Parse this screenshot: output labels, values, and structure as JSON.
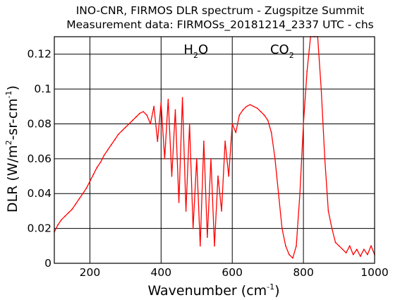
{
  "chart_data": {
    "type": "line",
    "title": "INO-CNR, FIRMOS DLR spectrum - Zugspitze Summit",
    "subtitle": "Measurement data: FIRMOSs_20181214_2337 UTC - chs",
    "xlabel": {
      "main": "Wavenumber (cm",
      "sup": "-1",
      "end": ")"
    },
    "ylabel": {
      "p1": "DLR (W/m",
      "sup1": "2",
      "p2": "-sr-cm",
      "sup2": "-1",
      "p3": ")"
    },
    "xlim": [
      100,
      1000
    ],
    "ylim": [
      0,
      0.13
    ],
    "xticks": [
      200,
      400,
      600,
      800,
      1000
    ],
    "xtick_labels": [
      "200",
      "400",
      "600",
      "800",
      "1000"
    ],
    "yticks": [
      0,
      0.02,
      0.04,
      0.06,
      0.08,
      0.1,
      0.12
    ],
    "ytick_labels": [
      "0",
      "0.02",
      "0.04",
      "0.06",
      "0.08",
      "0.1",
      "0.12"
    ],
    "grid": true,
    "line_color": "#ff0000",
    "annotations": [
      {
        "label": "H",
        "sub": "2",
        "tail": "O",
        "x": 498
      },
      {
        "label": "CO",
        "sub": "2",
        "tail": "",
        "x": 740
      }
    ],
    "series": [
      {
        "x": [
          100,
          110,
          120,
          130,
          140,
          150,
          160,
          170,
          180,
          190,
          200,
          210,
          220,
          230,
          240,
          250,
          260,
          270,
          280,
          290,
          300,
          310,
          320,
          330,
          340,
          350,
          360,
          370,
          380,
          390,
          400,
          410,
          420,
          430,
          440,
          450,
          460,
          470,
          480,
          490,
          500,
          510,
          520,
          530,
          540,
          550,
          560,
          570,
          580,
          590,
          600,
          610,
          620,
          630,
          640,
          650,
          660,
          670,
          680,
          690,
          700,
          710,
          720,
          730,
          740,
          750,
          760,
          770,
          780,
          790,
          800,
          810,
          820,
          830,
          840,
          850,
          860,
          870,
          880,
          890,
          900,
          910,
          920,
          930,
          940,
          950,
          960,
          970,
          980,
          990,
          1000
        ],
        "y": [
          0.018,
          0.022,
          0.025,
          0.027,
          0.029,
          0.031,
          0.034,
          0.037,
          0.04,
          0.043,
          0.047,
          0.051,
          0.055,
          0.058,
          0.062,
          0.065,
          0.068,
          0.071,
          0.074,
          0.076,
          0.078,
          0.08,
          0.082,
          0.084,
          0.086,
          0.087,
          0.085,
          0.08,
          0.09,
          0.07,
          0.092,
          0.06,
          0.094,
          0.05,
          0.088,
          0.035,
          0.095,
          0.03,
          0.08,
          0.02,
          0.06,
          0.01,
          0.07,
          0.015,
          0.06,
          0.01,
          0.05,
          0.03,
          0.07,
          0.05,
          0.08,
          0.075,
          0.085,
          0.088,
          0.09,
          0.091,
          0.09,
          0.089,
          0.087,
          0.085,
          0.082,
          0.075,
          0.06,
          0.04,
          0.02,
          0.01,
          0.005,
          0.003,
          0.01,
          0.04,
          0.08,
          0.11,
          0.13,
          0.13,
          0.13,
          0.1,
          0.06,
          0.03,
          0.02,
          0.012,
          0.01,
          0.008,
          0.006,
          0.01,
          0.005,
          0.008,
          0.004,
          0.008,
          0.005,
          0.01,
          0.005
        ]
      }
    ]
  }
}
